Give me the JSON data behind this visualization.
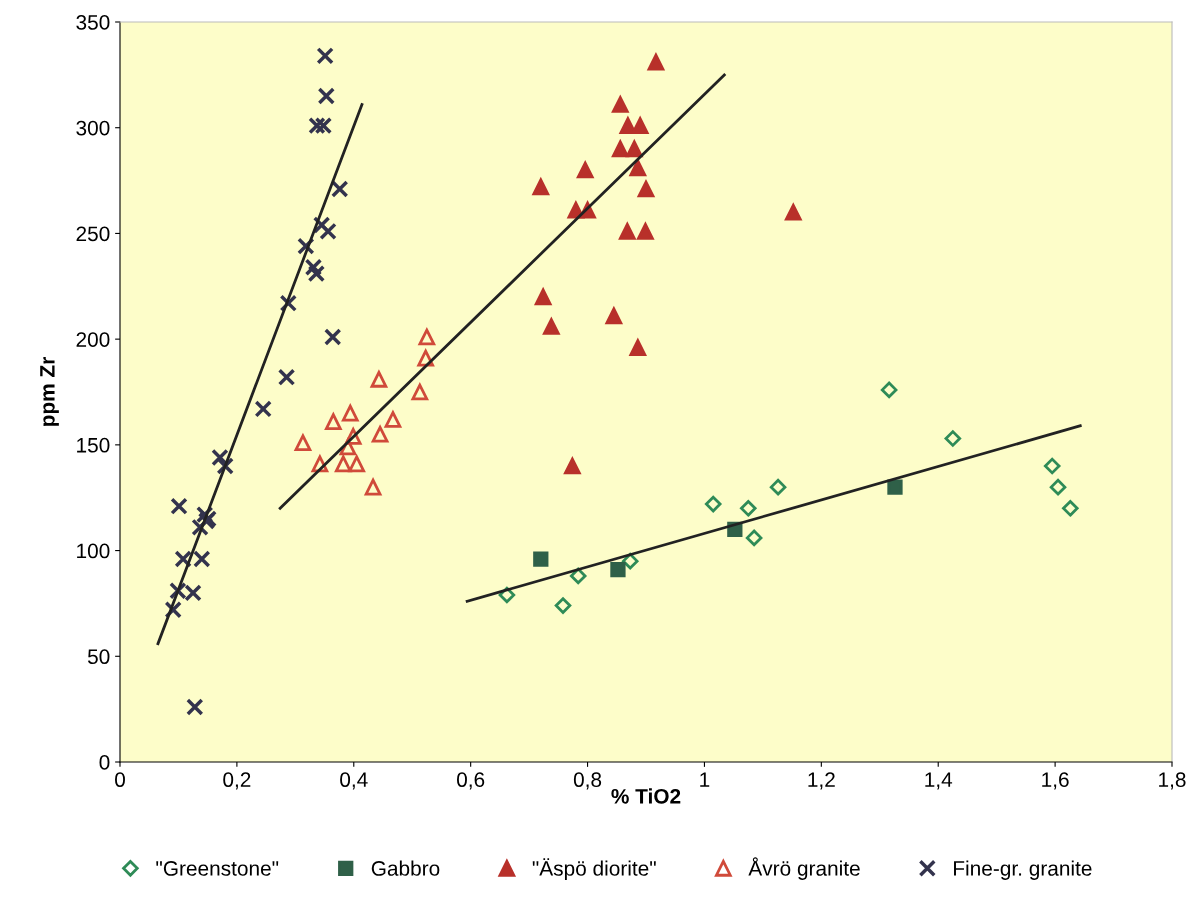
{
  "chart_data": {
    "type": "scatter",
    "xlabel": "% TiO2",
    "ylabel": "ppm Zr",
    "xlim": [
      0,
      1.8
    ],
    "ylim": [
      0,
      350
    ],
    "xticks": [
      0,
      {
        "value": 0.2,
        "label": "0,2"
      },
      {
        "value": 0.4,
        "label": "0,4"
      },
      {
        "value": 0.6,
        "label": "0,6"
      },
      {
        "value": 0.8,
        "label": "0,8"
      },
      1,
      {
        "value": 1.2,
        "label": "1,2"
      },
      {
        "value": 1.4,
        "label": "1,4"
      },
      {
        "value": 1.6,
        "label": "1,6"
      },
      {
        "value": 1.8,
        "label": "1,8"
      }
    ],
    "yticks": [
      0,
      50,
      100,
      150,
      200,
      250,
      300,
      350
    ],
    "grid": false,
    "legend": "bottom",
    "series": [
      {
        "name": "\"Greenstone\"",
        "color": "#2e8b57",
        "marker": "diamond",
        "x": [
          0.662,
          0.758,
          0.784,
          0.873,
          1.015,
          1.075,
          1.085,
          1.126,
          1.316,
          1.425,
          1.595,
          1.605,
          1.626
        ],
        "values": [
          79,
          74,
          88,
          95,
          122,
          120,
          106,
          130,
          176,
          153,
          140,
          130,
          120
        ]
      },
      {
        "name": "Gabbro",
        "color": "#2f6048",
        "marker": "square",
        "x": [
          0.72,
          0.852,
          1.052,
          1.326
        ],
        "values": [
          96,
          91,
          110,
          130
        ]
      },
      {
        "name": "\"Äspö diorite\"",
        "color": "#b8302a",
        "marker": "triangle",
        "x": [
          0.917,
          0.856,
          0.869,
          0.89,
          0.856,
          0.88,
          0.886,
          0.9,
          0.899,
          0.868,
          0.796,
          0.72,
          0.78,
          0.8,
          0.724,
          0.738,
          0.845,
          0.886,
          0.774,
          1.152
        ],
        "values": [
          331,
          311,
          301,
          301,
          290,
          290,
          281,
          271,
          251,
          251,
          280,
          272,
          261,
          261,
          220,
          206,
          211,
          196,
          140,
          260
        ]
      },
      {
        "name": "Åvrö granite",
        "color": "#d04a3a",
        "marker": "triangle",
        "x": [
          0.525,
          0.523,
          0.443,
          0.513,
          0.394,
          0.365,
          0.467,
          0.445,
          0.399,
          0.39,
          0.313,
          0.342,
          0.382,
          0.405,
          0.433
        ],
        "values": [
          201,
          191,
          181,
          175,
          165,
          161,
          162,
          155,
          154,
          149,
          151,
          141,
          141,
          141,
          130
        ]
      },
      {
        "name": "Fine-gr. granite",
        "color": "#33334d",
        "marker": "cross",
        "x": [
          0.351,
          0.353,
          0.337,
          0.348,
          0.376,
          0.345,
          0.356,
          0.318,
          0.331,
          0.336,
          0.288,
          0.364,
          0.285,
          0.245,
          0.171,
          0.18,
          0.101,
          0.145,
          0.148,
          0.137,
          0.151,
          0.108,
          0.14,
          0.099,
          0.125,
          0.091,
          0.128
        ],
        "values": [
          334,
          315,
          301,
          301,
          271,
          254,
          251,
          244,
          234,
          231,
          217,
          201,
          182,
          167,
          144,
          140,
          121,
          117,
          114,
          111,
          115,
          96,
          96,
          81,
          80,
          72,
          26
        ]
      },
      {
        "type": "line",
        "color": "#222222",
        "x": [
          0.065,
          0.414
        ],
        "values": [
          56,
          311
        ]
      },
      {
        "type": "line",
        "color": "#222222",
        "x": [
          0.274,
          1.034
        ],
        "values": [
          120,
          325
        ]
      },
      {
        "type": "line",
        "color": "#222222",
        "x": [
          0.594,
          1.643
        ],
        "values": [
          76,
          159
        ]
      }
    ]
  }
}
